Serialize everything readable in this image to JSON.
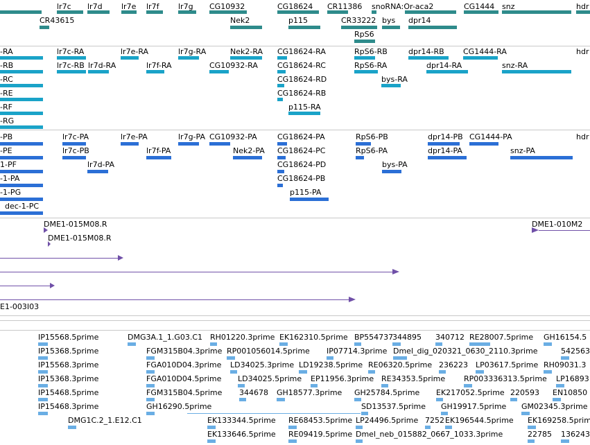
{
  "colors": {
    "gene": "#2e8b8b",
    "transcript_rna": "#1aa3c8",
    "transcript_pa": "#2b6fd6",
    "clone": "#7050a8",
    "est": "#6aaee4",
    "divider": "#c8c8c8"
  },
  "tracks": {
    "genes": {
      "labels": [
        "lr7c",
        "lr7d",
        "lr7e",
        "lr7f",
        "lr7g",
        "CG10932",
        "CG18624",
        "CR11386",
        "snoRNA:Or-aca2",
        "CG1444",
        "snz",
        "hdr",
        "CR43615",
        "Nek2",
        "p115",
        "CR33222",
        "bys",
        "dpr14",
        "RpS6"
      ]
    },
    "transcripts_rna": {
      "labels": [
        "-RA",
        "lr7c-RA",
        "lr7e-RA",
        "lr7g-RA",
        "Nek2-RA",
        "CG18624-RA",
        "RpS6-RB",
        "dpr14-RB",
        "CG1444-RA",
        "hdr",
        "-RB",
        "lr7c-RB",
        "lr7d-RA",
        "lr7f-RA",
        "CG10932-RA",
        "CG18624-RC",
        "RpS6-RA",
        "dpr14-RA",
        "snz-RA",
        "-RC",
        "CG18624-RD",
        "bys-RA",
        "-RE",
        "CG18624-RB",
        "-RF",
        "p115-RA",
        "-RG"
      ]
    },
    "transcripts_pa": {
      "labels": [
        "-PB",
        "lr7c-PA",
        "lr7e-PA",
        "lr7g-PA",
        "CG10932-PA",
        "CG18624-PA",
        "RpS6-PB",
        "dpr14-PB",
        "CG1444-PA",
        "hdr",
        "-PE",
        "lr7c-PB",
        "lr7f-PA",
        "Nek2-PA",
        "CG18624-PC",
        "RpS6-PA",
        "dpr14-PA",
        "snz-PA",
        "1-PF",
        "lr7d-PA",
        "CG18624-PD",
        "bys-PA",
        "-1-PA",
        "CG18624-PB",
        "-1-PG",
        "p115-PA",
        "dec-1-PC"
      ]
    },
    "clones": {
      "labels": [
        "DME1-015M08.R",
        "DME1-010M2",
        "DME1-015M08.R",
        "E1-003I03"
      ]
    },
    "ests": {
      "labels": [
        "IP15568.5prime",
        "DMG3A.1_1.G03.C1",
        "RH01220.3prime",
        "EK162310.5prime",
        "BP554737",
        "344895",
        "340712",
        "RE28007.5prime",
        "GH16154.5",
        "IP15368.5prime",
        "FGM315B04.3prime",
        "RP001056014.5prime",
        "IP07714.3prime",
        "Dmel_dig_020321_0630_2110.3prime",
        "542563",
        "IP15568.3prime",
        "FGA010D04.3prime",
        "LD34025.3prime",
        "LD19238.5prime",
        "RE06320.5prime",
        "236223",
        "LP03617.5prime",
        "RH09031.3",
        "IP15368.3prime",
        "FGA010D04.5prime",
        "LD34025.5prime",
        "EP11956.3prime",
        "RE34353.5prime",
        "RP003336313.5prime",
        "LP16893",
        "IP15468.5prime",
        "FGM315B04.5prime",
        "344678",
        "GH18577.3prime",
        "GH25784.5prime",
        "EK217052.5prime",
        "220593",
        "EN10850",
        "IP15468.3prime",
        "GH16290.5prime",
        "SD13537.5prime",
        "GH19917.5prime",
        "GM02345.3prime",
        "DMG1C.2_1.E12.C1",
        "EK133344.5prime",
        "RE68453.5prime",
        "LP24496.5prime",
        "7252",
        "EK196544.5prime",
        "EK169258.5prime",
        "EK133646.5prime",
        "RE09419.5prime",
        "Dmel_neb_015882_0667_1033.3prime",
        "22785",
        "136243"
      ]
    }
  }
}
